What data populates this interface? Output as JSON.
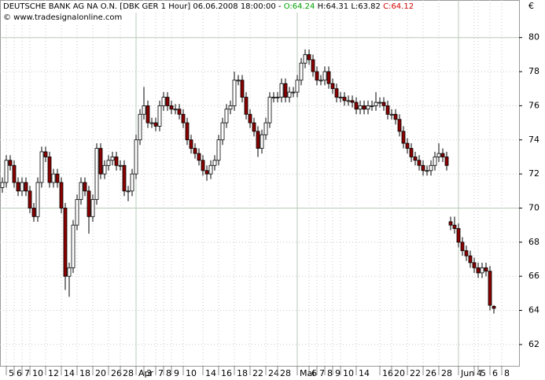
{
  "chart_data": {
    "type": "candlestick",
    "title": "DEUTSCHE BANK AG NA O.N. [DBK GER  1 Hour] 06.06.2008 18:00:00 -",
    "open_text": "O:64.24",
    "high_text": "H:64.31",
    "low_text": "L:63.82",
    "close_text": "C:64.12",
    "subtitle": "© www.tradesignalonline.com",
    "y_unit": "€",
    "up_color": "#ffffff",
    "down_color": "#8b0000",
    "outline_color": "#000000",
    "grid": true,
    "ylim": [
      60.75,
      82.2
    ],
    "yticks": [
      62,
      64,
      66,
      68,
      70,
      72,
      74,
      76,
      78,
      80
    ],
    "categories": [
      null,
      "5",
      null,
      "6",
      null,
      "7",
      null,
      "10",
      null,
      null,
      null,
      "12",
      null,
      null,
      null,
      "14",
      null,
      null,
      null,
      "18",
      null,
      null,
      null,
      "20",
      null,
      null,
      null,
      "26",
      null,
      null,
      "28",
      null,
      null,
      null,
      "Apr",
      null,
      "3",
      null,
      null,
      "7",
      null,
      "8",
      null,
      "9",
      null,
      null,
      "10",
      null,
      null,
      null,
      null,
      "14",
      null,
      null,
      null,
      "16",
      null,
      null,
      null,
      "18",
      null,
      null,
      null,
      "22",
      null,
      null,
      null,
      "24",
      null,
      null,
      "28",
      null,
      null,
      null,
      null,
      "Mai",
      null,
      null,
      "6",
      null,
      "7",
      null,
      "8",
      null,
      "9",
      null,
      "10",
      null,
      null,
      null,
      "14",
      null,
      null,
      null,
      null,
      null,
      "16",
      null,
      null,
      "20",
      null,
      null,
      null,
      "22",
      null,
      null,
      null,
      "26",
      null,
      null,
      null,
      "28",
      null,
      null,
      null,
      null,
      "Jun",
      null,
      null,
      null,
      "4",
      "5",
      null,
      null,
      "6",
      null,
      null,
      "8"
    ],
    "ohlc": [
      [
        71.2,
        71.8,
        70.9,
        71.5
      ],
      [
        71.5,
        73.1,
        71.2,
        72.8
      ],
      [
        72.8,
        73.1,
        72.2,
        72.5
      ],
      [
        72.5,
        72.8,
        71.2,
        71.5
      ],
      [
        71.5,
        71.8,
        70.7,
        71.0
      ],
      [
        71.0,
        71.8,
        70.7,
        71.5
      ],
      [
        71.5,
        71.8,
        70.7,
        71.0
      ],
      [
        71.0,
        71.3,
        69.7,
        70.0
      ],
      [
        70.0,
        70.3,
        69.2,
        69.5
      ],
      [
        69.5,
        71.8,
        69.2,
        71.5
      ],
      [
        71.5,
        73.6,
        71.2,
        73.3
      ],
      [
        73.3,
        73.6,
        72.7,
        73.0
      ],
      [
        73.0,
        73.3,
        71.2,
        71.5
      ],
      [
        71.5,
        72.3,
        71.2,
        72.0
      ],
      [
        72.0,
        72.3,
        71.2,
        71.5
      ],
      [
        71.5,
        71.8,
        69.7,
        70.0
      ],
      [
        70.0,
        70.3,
        65.2,
        66.0
      ],
      [
        66.0,
        66.8,
        64.8,
        66.5
      ],
      [
        66.5,
        69.3,
        66.2,
        69.0
      ],
      [
        69.0,
        70.8,
        68.7,
        70.5
      ],
      [
        70.5,
        71.8,
        70.2,
        71.5
      ],
      [
        71.5,
        71.8,
        70.7,
        71.0
      ],
      [
        71.0,
        71.3,
        68.5,
        69.5
      ],
      [
        69.5,
        70.8,
        69.2,
        70.5
      ],
      [
        70.5,
        73.8,
        70.2,
        73.5
      ],
      [
        73.5,
        73.8,
        71.7,
        72.0
      ],
      [
        72.0,
        72.8,
        71.7,
        72.5
      ],
      [
        72.5,
        73.1,
        72.2,
        72.8
      ],
      [
        72.8,
        73.3,
        72.5,
        73.0
      ],
      [
        73.0,
        73.3,
        72.2,
        72.5
      ],
      [
        72.5,
        72.8,
        72.2,
        72.5
      ],
      [
        72.5,
        72.8,
        70.7,
        71.0
      ],
      [
        71.0,
        71.3,
        70.4,
        71.0
      ],
      [
        71.0,
        72.3,
        70.7,
        72.0
      ],
      [
        72.0,
        74.3,
        71.7,
        74.0
      ],
      [
        74.0,
        75.8,
        73.7,
        75.5
      ],
      [
        75.5,
        77.1,
        75.2,
        76.0
      ],
      [
        76.0,
        76.3,
        74.7,
        75.0
      ],
      [
        75.0,
        75.3,
        74.7,
        75.0
      ],
      [
        75.0,
        75.3,
        74.5,
        74.8
      ],
      [
        74.8,
        76.3,
        74.5,
        76.0
      ],
      [
        76.0,
        76.8,
        75.7,
        76.5
      ],
      [
        76.5,
        76.8,
        75.7,
        76.0
      ],
      [
        76.0,
        76.3,
        75.5,
        75.8
      ],
      [
        75.8,
        76.1,
        75.5,
        75.8
      ],
      [
        75.8,
        76.1,
        75.2,
        75.5
      ],
      [
        75.5,
        75.8,
        74.7,
        75.0
      ],
      [
        75.0,
        75.3,
        73.7,
        74.0
      ],
      [
        74.0,
        74.3,
        73.2,
        73.5
      ],
      [
        73.5,
        73.8,
        72.9,
        73.2
      ],
      [
        73.2,
        73.5,
        72.5,
        72.8
      ],
      [
        72.8,
        73.1,
        71.9,
        72.2
      ],
      [
        72.2,
        72.5,
        71.6,
        72.0
      ],
      [
        72.0,
        72.8,
        71.7,
        72.5
      ],
      [
        72.5,
        73.1,
        72.2,
        72.8
      ],
      [
        72.8,
        74.3,
        72.5,
        74.0
      ],
      [
        74.0,
        75.3,
        73.7,
        75.0
      ],
      [
        75.0,
        76.1,
        74.7,
        75.8
      ],
      [
        75.8,
        76.3,
        75.5,
        76.0
      ],
      [
        76.0,
        78.0,
        75.7,
        77.5
      ],
      [
        77.5,
        77.8,
        77.2,
        77.5
      ],
      [
        77.5,
        77.8,
        76.2,
        76.5
      ],
      [
        76.5,
        76.8,
        75.2,
        75.5
      ],
      [
        75.5,
        75.8,
        74.7,
        75.0
      ],
      [
        75.0,
        75.3,
        74.2,
        74.5
      ],
      [
        74.5,
        74.8,
        73.0,
        73.5
      ],
      [
        73.5,
        74.6,
        73.2,
        74.3
      ],
      [
        74.3,
        75.3,
        74.0,
        75.0
      ],
      [
        75.0,
        76.8,
        74.7,
        76.5
      ],
      [
        76.5,
        76.8,
        76.2,
        76.5
      ],
      [
        76.5,
        76.8,
        76.2,
        76.5
      ],
      [
        76.5,
        77.6,
        76.2,
        77.3
      ],
      [
        77.3,
        77.6,
        76.2,
        76.5
      ],
      [
        76.5,
        77.1,
        76.2,
        76.8
      ],
      [
        76.8,
        77.1,
        76.5,
        76.8
      ],
      [
        76.8,
        77.8,
        76.5,
        77.5
      ],
      [
        77.5,
        78.8,
        77.2,
        78.5
      ],
      [
        78.5,
        79.3,
        78.2,
        79.0
      ],
      [
        79.0,
        79.3,
        78.4,
        78.7
      ],
      [
        78.7,
        79.0,
        77.7,
        78.0
      ],
      [
        78.0,
        78.3,
        77.2,
        77.5
      ],
      [
        77.5,
        77.8,
        77.2,
        77.5
      ],
      [
        77.5,
        78.3,
        77.2,
        78.0
      ],
      [
        78.0,
        78.3,
        77.0,
        77.3
      ],
      [
        77.3,
        77.6,
        76.7,
        77.0
      ],
      [
        77.0,
        77.3,
        76.2,
        76.5
      ],
      [
        76.5,
        76.8,
        76.2,
        76.5
      ],
      [
        76.5,
        76.8,
        76.0,
        76.3
      ],
      [
        76.3,
        76.6,
        76.0,
        76.3
      ],
      [
        76.3,
        76.6,
        75.9,
        76.2
      ],
      [
        76.2,
        76.5,
        75.5,
        75.8
      ],
      [
        75.8,
        76.3,
        75.5,
        76.0
      ],
      [
        76.0,
        76.3,
        75.5,
        75.8
      ],
      [
        75.8,
        76.3,
        75.5,
        76.0
      ],
      [
        76.0,
        76.3,
        75.7,
        76.0
      ],
      [
        76.0,
        76.8,
        75.7,
        76.2
      ],
      [
        76.2,
        76.5,
        75.9,
        76.2
      ],
      [
        76.2,
        76.5,
        75.7,
        76.0
      ],
      [
        76.0,
        76.3,
        75.2,
        75.5
      ],
      [
        75.5,
        75.8,
        75.2,
        75.5
      ],
      [
        75.5,
        75.8,
        74.9,
        75.2
      ],
      [
        75.2,
        75.5,
        74.2,
        74.5
      ],
      [
        74.5,
        74.8,
        73.5,
        73.8
      ],
      [
        73.8,
        74.1,
        73.2,
        73.5
      ],
      [
        73.5,
        73.8,
        72.7,
        73.0
      ],
      [
        73.0,
        73.3,
        72.5,
        72.8
      ],
      [
        72.8,
        73.1,
        72.2,
        72.5
      ],
      [
        72.5,
        72.8,
        71.9,
        72.2
      ],
      [
        72.2,
        72.5,
        71.9,
        72.2
      ],
      [
        72.2,
        72.8,
        71.9,
        72.5
      ],
      [
        72.5,
        73.3,
        72.2,
        73.0
      ],
      [
        73.0,
        73.8,
        72.7,
        73.2
      ],
      [
        73.2,
        73.5,
        72.7,
        73.0
      ],
      [
        73.0,
        73.3,
        72.2,
        72.5
      ],
      [
        69.2,
        69.5,
        68.7,
        69.0
      ],
      [
        69.0,
        69.5,
        68.5,
        68.8
      ],
      [
        68.8,
        69.1,
        67.7,
        68.0
      ],
      [
        68.0,
        68.3,
        67.2,
        67.5
      ],
      [
        67.5,
        67.8,
        66.9,
        67.2
      ],
      [
        67.2,
        67.5,
        66.5,
        66.8
      ],
      [
        66.8,
        67.1,
        66.2,
        66.5
      ],
      [
        66.5,
        66.8,
        65.9,
        66.2
      ],
      [
        66.2,
        66.8,
        65.9,
        66.5
      ],
      [
        66.5,
        66.8,
        66.0,
        66.3
      ],
      [
        66.3,
        66.6,
        64.0,
        64.3
      ],
      [
        64.24,
        64.31,
        63.82,
        64.12
      ],
      null,
      null
    ]
  }
}
